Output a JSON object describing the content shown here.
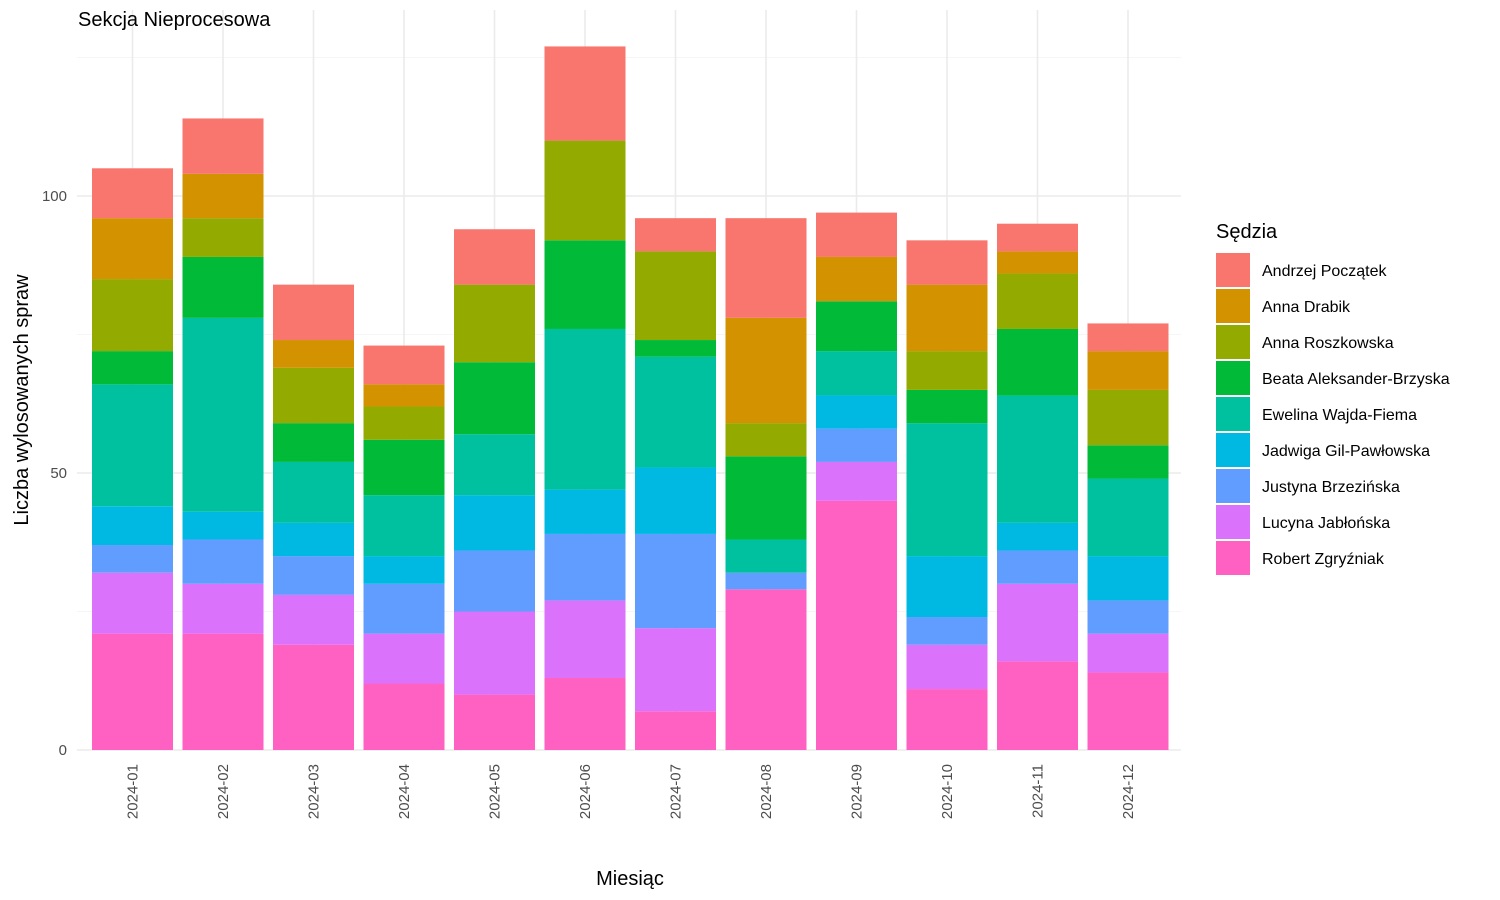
{
  "chart_data": {
    "type": "bar",
    "stacked": true,
    "title": "Sekcja Nieprocesowa",
    "xlabel": "Miesiąc",
    "ylabel": "Liczba wylosowanych spraw",
    "ylim": [
      0,
      130
    ],
    "yticks": [
      0,
      50,
      100
    ],
    "grid": true,
    "legend_title": "Sędzia",
    "legend_position": "right",
    "categories": [
      "2024-01",
      "2024-02",
      "2024-03",
      "2024-04",
      "2024-05",
      "2024-06",
      "2024-07",
      "2024-08",
      "2024-09",
      "2024-10",
      "2024-11",
      "2024-12"
    ],
    "series": [
      {
        "name": "Robert Zgryźniak",
        "color": "#FF61C3",
        "values": [
          21,
          21,
          19,
          12,
          10,
          13,
          7,
          29,
          45,
          11,
          16,
          14
        ]
      },
      {
        "name": "Lucyna Jabłońska",
        "color": "#DB72FB",
        "values": [
          11,
          9,
          9,
          9,
          15,
          14,
          15,
          0,
          7,
          8,
          14,
          7
        ]
      },
      {
        "name": "Justyna Brzezińska",
        "color": "#619CFF",
        "values": [
          5,
          8,
          7,
          9,
          11,
          12,
          17,
          3,
          6,
          5,
          6,
          6
        ]
      },
      {
        "name": "Jadwiga Gil-Pawłowska",
        "color": "#00B9E3",
        "values": [
          7,
          5,
          6,
          5,
          10,
          8,
          12,
          0,
          6,
          11,
          5,
          8
        ]
      },
      {
        "name": "Ewelina Wajda-Fiema",
        "color": "#00C19F",
        "values": [
          22,
          35,
          11,
          11,
          11,
          29,
          20,
          6,
          8,
          24,
          23,
          14
        ]
      },
      {
        "name": "Beata Aleksander-Brzyska",
        "color": "#00BA38",
        "values": [
          6,
          11,
          7,
          10,
          13,
          16,
          3,
          15,
          9,
          6,
          12,
          6
        ]
      },
      {
        "name": "Anna Roszkowska",
        "color": "#93AA00",
        "values": [
          13,
          7,
          10,
          6,
          14,
          18,
          16,
          6,
          0,
          7,
          10,
          10
        ]
      },
      {
        "name": "Anna Drabik",
        "color": "#D39200",
        "values": [
          11,
          8,
          5,
          4,
          0,
          0,
          0,
          19,
          8,
          12,
          4,
          7
        ]
      },
      {
        "name": "Andrzej Początek",
        "color": "#F8766D",
        "values": [
          9,
          10,
          10,
          7,
          10,
          17,
          6,
          18,
          8,
          8,
          5,
          5
        ]
      }
    ],
    "legend_order": [
      "Andrzej Początek",
      "Anna Drabik",
      "Anna Roszkowska",
      "Beata Aleksander-Brzyska",
      "Ewelina Wajda-Fiema",
      "Jadwiga Gil-Pawłowska",
      "Justyna Brzezińska",
      "Lucyna Jabłońska",
      "Robert Zgryźniak"
    ]
  }
}
